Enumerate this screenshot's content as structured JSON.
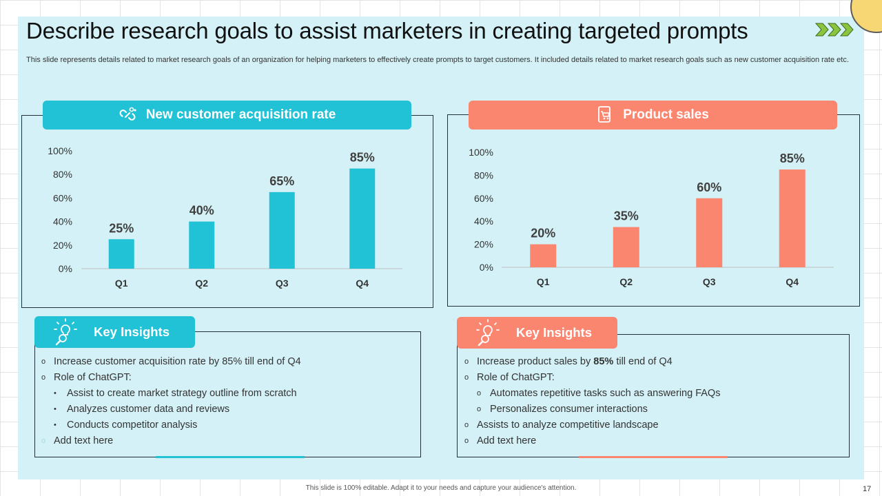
{
  "title": "Describe research goals to assist marketers in creating targeted prompts",
  "description": "This slide represents details related to market research goals of an organization for helping marketers to effectively create prompts to target customers. It included details related to market research goals such as new customer acquisition rate etc.",
  "colors": {
    "teal": "#21c1d6",
    "coral": "#fb8670",
    "background": "#d3f1f6"
  },
  "left_panel": {
    "header": "New customer acquisition rate",
    "icon": "link-icon"
  },
  "right_panel": {
    "header": "Product sales",
    "icon": "shopping-cart-icon"
  },
  "chart_data": [
    {
      "type": "bar",
      "title": "New customer acquisition rate",
      "categories": [
        "Q1",
        "Q2",
        "Q3",
        "Q4"
      ],
      "values": [
        25,
        40,
        65,
        85
      ],
      "data_labels": [
        "25%",
        "40%",
        "65%",
        "85%"
      ],
      "y_ticks": [
        "0%",
        "20%",
        "40%",
        "60%",
        "80%",
        "100%"
      ],
      "ylim": [
        0,
        100
      ],
      "color": "#21c1d6"
    },
    {
      "type": "bar",
      "title": "Product sales",
      "categories": [
        "Q1",
        "Q2",
        "Q3",
        "Q4"
      ],
      "values": [
        20,
        35,
        60,
        85
      ],
      "data_labels": [
        "20%",
        "35%",
        "60%",
        "85%"
      ],
      "y_ticks": [
        "0%",
        "20%",
        "40%",
        "60%",
        "80%",
        "100%"
      ],
      "ylim": [
        0,
        100
      ],
      "color": "#fb8670"
    }
  ],
  "left_insights": {
    "header": "Key Insights",
    "items": [
      "Increase customer acquisition rate by 85% till end of Q4",
      "Role of ChatGPT:",
      "Assist to create market strategy outline from scratch",
      "Analyzes customer data and reviews",
      "Conducts competitor analysis",
      "Add text here"
    ]
  },
  "right_insights": {
    "header": "Key Insights",
    "item1_prefix": "Increase product sales by ",
    "item1_bold": "85%",
    "item1_suffix": " till end of Q4",
    "items": [
      "Role of ChatGPT:",
      "Automates repetitive tasks such as answering FAQs",
      "Personalizes consumer interactions",
      "Assists to analyze competitive landscape",
      "Add text here"
    ]
  },
  "footer": "This slide is 100% editable. Adapt it to your needs and capture your audience's attention.",
  "page_number": "17"
}
